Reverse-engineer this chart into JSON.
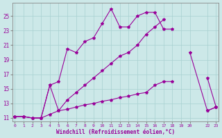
{
  "bg_color": "#cce8e8",
  "grid_color": "#a8d0d0",
  "line_color": "#990099",
  "xlim": [
    -0.3,
    23.3
  ],
  "ylim": [
    10.5,
    26.8
  ],
  "xticks": [
    0,
    1,
    2,
    3,
    4,
    5,
    6,
    7,
    8,
    9,
    10,
    11,
    12,
    13,
    14,
    15,
    16,
    17,
    18,
    19,
    20,
    22,
    23
  ],
  "yticks": [
    11,
    13,
    15,
    17,
    19,
    21,
    23,
    25
  ],
  "xlabel": "Windchill (Refroidissement éolien,°C)",
  "series": [
    {
      "x": [
        0,
        1,
        2,
        3,
        4,
        5,
        6,
        7,
        8,
        9,
        10,
        11,
        12,
        13,
        14,
        15,
        16,
        17,
        18,
        19,
        20,
        22,
        23
      ],
      "y": [
        11.2,
        11.2,
        11.0,
        11.0,
        15.5,
        16.0,
        20.5,
        20.0,
        21.5,
        22.0,
        24.0,
        26.0,
        23.5,
        23.5,
        25.0,
        25.5,
        25.5,
        23.2,
        23.2,
        null,
        null,
        16.5,
        12.5
      ]
    },
    {
      "x": [
        0,
        1,
        2,
        3,
        4,
        5,
        6,
        7,
        8,
        9,
        10,
        11,
        12,
        13,
        14,
        15,
        16,
        17,
        18,
        19,
        20,
        22,
        23
      ],
      "y": [
        11.2,
        11.2,
        11.0,
        11.0,
        15.5,
        12.0,
        13.5,
        14.5,
        15.5,
        16.5,
        17.5,
        18.5,
        19.5,
        20.0,
        21.0,
        22.5,
        23.5,
        24.5,
        null,
        null,
        20.0,
        12.0,
        12.5
      ]
    },
    {
      "x": [
        0,
        1,
        2,
        3,
        4,
        5,
        6,
        7,
        8,
        9,
        10,
        11,
        12,
        13,
        14,
        15,
        16,
        17,
        18,
        19,
        20,
        22,
        23
      ],
      "y": [
        11.2,
        11.2,
        11.0,
        11.0,
        11.5,
        12.0,
        12.2,
        12.5,
        12.8,
        13.0,
        13.3,
        13.5,
        13.8,
        14.0,
        14.3,
        14.5,
        15.5,
        16.0,
        16.0,
        null,
        null,
        12.0,
        12.5
      ]
    }
  ]
}
